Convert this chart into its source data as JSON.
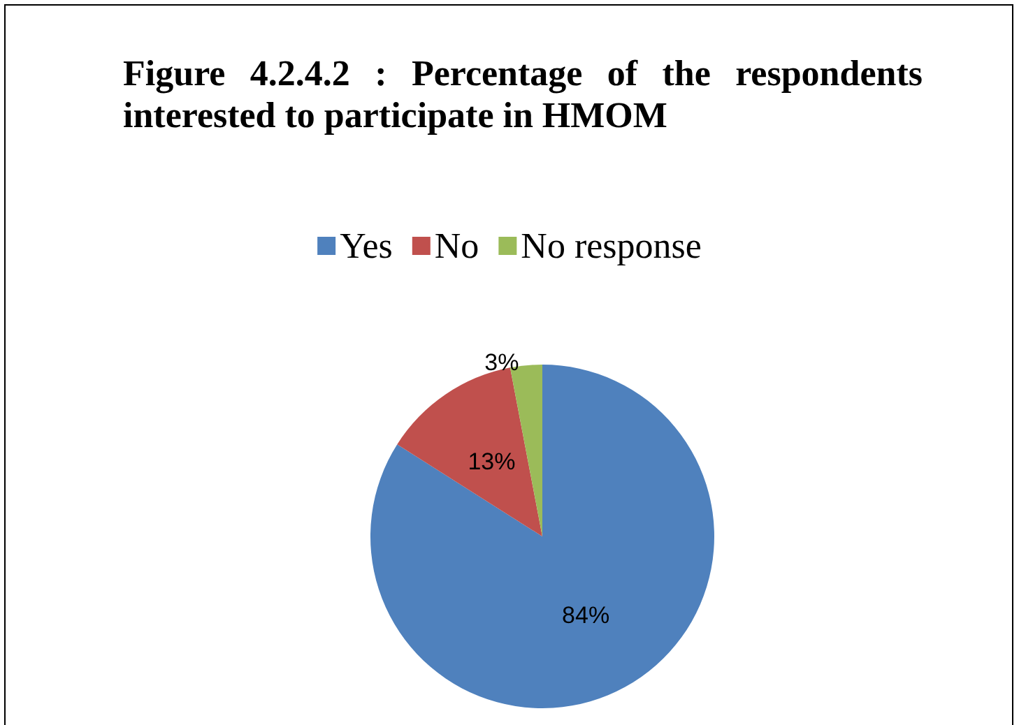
{
  "chart_data": {
    "type": "pie",
    "title": "Figure 4.2.4.2 : Percentage of the respondents interested to participate in HMOM",
    "categories": [
      "Yes",
      "No",
      "No response"
    ],
    "values": [
      84,
      13,
      3
    ],
    "colors": [
      "#4f81bd",
      "#c0504d",
      "#9bbb59"
    ],
    "value_labels": [
      "84%",
      "13%",
      "3%"
    ],
    "legend": "top"
  }
}
